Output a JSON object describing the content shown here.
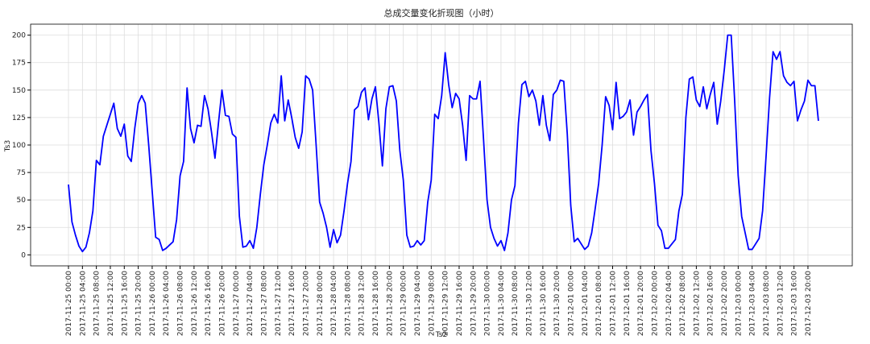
{
  "chart_data": {
    "type": "line",
    "title": "总成交量变化折现图（小时）",
    "xlabel": "Ts2",
    "ylabel": "Ts3",
    "grid": true,
    "x": [
      "2017-11-25 00:00",
      "2017-11-25 01:00",
      "2017-11-25 02:00",
      "2017-11-25 03:00",
      "2017-11-25 04:00",
      "2017-11-25 05:00",
      "2017-11-25 06:00",
      "2017-11-25 07:00",
      "2017-11-25 08:00",
      "2017-11-25 09:00",
      "2017-11-25 10:00",
      "2017-11-25 11:00",
      "2017-11-25 12:00",
      "2017-11-25 13:00",
      "2017-11-25 14:00",
      "2017-11-25 15:00",
      "2017-11-25 16:00",
      "2017-11-25 17:00",
      "2017-11-25 18:00",
      "2017-11-25 19:00",
      "2017-11-25 20:00",
      "2017-11-25 21:00",
      "2017-11-25 22:00",
      "2017-11-25 23:00",
      "2017-11-26 00:00",
      "2017-11-26 01:00",
      "2017-11-26 02:00",
      "2017-11-26 03:00",
      "2017-11-26 04:00",
      "2017-11-26 05:00",
      "2017-11-26 06:00",
      "2017-11-26 07:00",
      "2017-11-26 08:00",
      "2017-11-26 09:00",
      "2017-11-26 10:00",
      "2017-11-26 11:00",
      "2017-11-26 12:00",
      "2017-11-26 13:00",
      "2017-11-26 14:00",
      "2017-11-26 15:00",
      "2017-11-26 16:00",
      "2017-11-26 17:00",
      "2017-11-26 18:00",
      "2017-11-26 19:00",
      "2017-11-26 20:00",
      "2017-11-26 21:00",
      "2017-11-26 22:00",
      "2017-11-26 23:00",
      "2017-11-27 00:00",
      "2017-11-27 01:00",
      "2017-11-27 02:00",
      "2017-11-27 03:00",
      "2017-11-27 04:00",
      "2017-11-27 05:00",
      "2017-11-27 06:00",
      "2017-11-27 07:00",
      "2017-11-27 08:00",
      "2017-11-27 09:00",
      "2017-11-27 10:00",
      "2017-11-27 11:00",
      "2017-11-27 12:00",
      "2017-11-27 13:00",
      "2017-11-27 14:00",
      "2017-11-27 15:00",
      "2017-11-27 16:00",
      "2017-11-27 17:00",
      "2017-11-27 18:00",
      "2017-11-27 19:00",
      "2017-11-27 20:00",
      "2017-11-27 21:00",
      "2017-11-27 22:00",
      "2017-11-27 23:00",
      "2017-11-28 00:00",
      "2017-11-28 01:00",
      "2017-11-28 02:00",
      "2017-11-28 03:00",
      "2017-11-28 04:00",
      "2017-11-28 05:00",
      "2017-11-28 06:00",
      "2017-11-28 07:00",
      "2017-11-28 08:00",
      "2017-11-28 09:00",
      "2017-11-28 10:00",
      "2017-11-28 11:00",
      "2017-11-28 12:00",
      "2017-11-28 13:00",
      "2017-11-28 14:00",
      "2017-11-28 15:00",
      "2017-11-28 16:00",
      "2017-11-28 17:00",
      "2017-11-28 18:00",
      "2017-11-28 19:00",
      "2017-11-28 20:00",
      "2017-11-28 21:00",
      "2017-11-28 22:00",
      "2017-11-28 23:00",
      "2017-11-29 00:00",
      "2017-11-29 01:00",
      "2017-11-29 02:00",
      "2017-11-29 03:00",
      "2017-11-29 04:00",
      "2017-11-29 05:00",
      "2017-11-29 06:00",
      "2017-11-29 07:00",
      "2017-11-29 08:00",
      "2017-11-29 09:00",
      "2017-11-29 10:00",
      "2017-11-29 11:00",
      "2017-11-29 12:00",
      "2017-11-29 13:00",
      "2017-11-29 14:00",
      "2017-11-29 15:00",
      "2017-11-29 16:00",
      "2017-11-29 17:00",
      "2017-11-29 18:00",
      "2017-11-29 19:00",
      "2017-11-29 20:00",
      "2017-11-29 21:00",
      "2017-11-29 22:00",
      "2017-11-29 23:00",
      "2017-11-30 00:00",
      "2017-11-30 01:00",
      "2017-11-30 02:00",
      "2017-11-30 03:00",
      "2017-11-30 04:00",
      "2017-11-30 05:00",
      "2017-11-30 06:00",
      "2017-11-30 07:00",
      "2017-11-30 08:00",
      "2017-11-30 09:00",
      "2017-11-30 10:00",
      "2017-11-30 11:00",
      "2017-11-30 12:00",
      "2017-11-30 13:00",
      "2017-11-30 14:00",
      "2017-11-30 15:00",
      "2017-11-30 16:00",
      "2017-11-30 17:00",
      "2017-11-30 18:00",
      "2017-11-30 19:00",
      "2017-11-30 20:00",
      "2017-11-30 21:00",
      "2017-11-30 22:00",
      "2017-11-30 23:00",
      "2017-12-01 00:00",
      "2017-12-01 01:00",
      "2017-12-01 02:00",
      "2017-12-01 03:00",
      "2017-12-01 04:00",
      "2017-12-01 05:00",
      "2017-12-01 06:00",
      "2017-12-01 07:00",
      "2017-12-01 08:00",
      "2017-12-01 09:00",
      "2017-12-01 10:00",
      "2017-12-01 11:00",
      "2017-12-01 12:00",
      "2017-12-01 13:00",
      "2017-12-01 14:00",
      "2017-12-01 15:00",
      "2017-12-01 16:00",
      "2017-12-01 17:00",
      "2017-12-01 18:00",
      "2017-12-01 19:00",
      "2017-12-01 20:00",
      "2017-12-01 21:00",
      "2017-12-01 22:00",
      "2017-12-01 23:00",
      "2017-12-02 00:00",
      "2017-12-02 01:00",
      "2017-12-02 02:00",
      "2017-12-02 03:00",
      "2017-12-02 04:00",
      "2017-12-02 05:00",
      "2017-12-02 06:00",
      "2017-12-02 07:00",
      "2017-12-02 08:00",
      "2017-12-02 09:00",
      "2017-12-02 10:00",
      "2017-12-02 11:00",
      "2017-12-02 12:00",
      "2017-12-02 13:00",
      "2017-12-02 14:00",
      "2017-12-02 15:00",
      "2017-12-02 16:00",
      "2017-12-02 17:00",
      "2017-12-02 18:00",
      "2017-12-02 19:00",
      "2017-12-02 20:00",
      "2017-12-02 21:00",
      "2017-12-02 22:00",
      "2017-12-02 23:00",
      "2017-12-03 00:00",
      "2017-12-03 01:00",
      "2017-12-03 02:00",
      "2017-12-03 03:00",
      "2017-12-03 04:00",
      "2017-12-03 05:00",
      "2017-12-03 06:00",
      "2017-12-03 07:00",
      "2017-12-03 08:00",
      "2017-12-03 09:00",
      "2017-12-03 10:00",
      "2017-12-03 11:00",
      "2017-12-03 12:00",
      "2017-12-03 13:00",
      "2017-12-03 14:00",
      "2017-12-03 15:00",
      "2017-12-03 16:00",
      "2017-12-03 17:00",
      "2017-12-03 18:00",
      "2017-12-03 19:00",
      "2017-12-03 20:00",
      "2017-12-03 21:00",
      "2017-12-03 22:00",
      "2017-12-03 23:00"
    ],
    "series": [
      {
        "color": "#0000ff",
        "values": [
          64,
          30,
          18,
          8,
          3,
          7,
          20,
          40,
          86,
          82,
          108,
          118,
          128,
          138,
          115,
          108,
          119,
          90,
          85,
          115,
          138,
          145,
          138,
          100,
          58,
          16,
          14,
          4,
          6,
          9,
          12,
          32,
          72,
          85,
          152,
          115,
          102,
          118,
          117,
          145,
          133,
          112,
          88,
          120,
          150,
          127,
          126,
          110,
          107,
          35,
          7,
          8,
          13,
          6,
          25,
          55,
          82,
          100,
          120,
          128,
          120,
          163,
          122,
          141,
          125,
          107,
          97,
          112,
          163,
          160,
          150,
          100,
          48,
          38,
          25,
          7,
          23,
          11,
          18,
          40,
          65,
          85,
          132,
          135,
          148,
          152,
          123,
          142,
          153,
          120,
          81,
          133,
          153,
          154,
          140,
          95,
          68,
          18,
          7,
          8,
          13,
          9,
          13,
          48,
          68,
          128,
          124,
          145,
          184,
          155,
          134,
          147,
          142,
          118,
          86,
          145,
          142,
          142,
          158,
          105,
          50,
          25,
          15,
          8,
          13,
          4,
          20,
          50,
          63,
          120,
          155,
          158,
          144,
          150,
          140,
          118,
          145,
          118,
          104,
          146,
          150,
          159,
          158,
          110,
          45,
          12,
          15,
          10,
          5,
          8,
          20,
          42,
          65,
          100,
          144,
          136,
          114,
          157,
          124,
          126,
          130,
          141,
          109,
          130,
          135,
          141,
          146,
          95,
          65,
          27,
          22,
          6,
          6,
          10,
          14,
          40,
          55,
          125,
          160,
          162,
          141,
          135,
          153,
          133,
          146,
          157,
          119,
          140,
          168,
          200,
          200,
          140,
          72,
          35,
          20,
          5,
          5,
          10,
          15,
          40,
          90,
          143,
          185,
          178,
          185,
          163,
          157,
          154,
          158,
          122,
          132,
          140,
          159,
          154,
          154,
          122
        ]
      }
    ],
    "xticks": [
      "2017-11-25 00:00",
      "2017-11-25 04:00",
      "2017-11-25 08:00",
      "2017-11-25 12:00",
      "2017-11-25 16:00",
      "2017-11-25 20:00",
      "2017-11-26 00:00",
      "2017-11-26 04:00",
      "2017-11-26 08:00",
      "2017-11-26 12:00",
      "2017-11-26 16:00",
      "2017-11-26 20:00",
      "2017-11-27 00:00",
      "2017-11-27 04:00",
      "2017-11-27 08:00",
      "2017-11-27 12:00",
      "2017-11-27 16:00",
      "2017-11-27 20:00",
      "2017-11-28 00:00",
      "2017-11-28 04:00",
      "2017-11-28 08:00",
      "2017-11-28 12:00",
      "2017-11-28 16:00",
      "2017-11-28 20:00",
      "2017-11-29 00:00",
      "2017-11-29 04:00",
      "2017-11-29 08:00",
      "2017-11-29 12:00",
      "2017-11-29 16:00",
      "2017-11-29 20:00",
      "2017-11-30 00:00",
      "2017-11-30 04:00",
      "2017-11-30 08:00",
      "2017-11-30 12:00",
      "2017-11-30 16:00",
      "2017-11-30 20:00",
      "2017-12-01 00:00",
      "2017-12-01 04:00",
      "2017-12-01 08:00",
      "2017-12-01 12:00",
      "2017-12-01 16:00",
      "2017-12-01 20:00",
      "2017-12-02 00:00",
      "2017-12-02 04:00",
      "2017-12-02 08:00",
      "2017-12-02 12:00",
      "2017-12-02 16:00",
      "2017-12-02 20:00",
      "2017-12-03 00:00",
      "2017-12-03 04:00",
      "2017-12-03 08:00",
      "2017-12-03 12:00",
      "2017-12-03 16:00",
      "2017-12-03 20:00"
    ],
    "ylim": [
      -10,
      210
    ],
    "yticks": [
      0,
      25,
      50,
      75,
      100,
      125,
      150,
      175,
      200
    ]
  }
}
